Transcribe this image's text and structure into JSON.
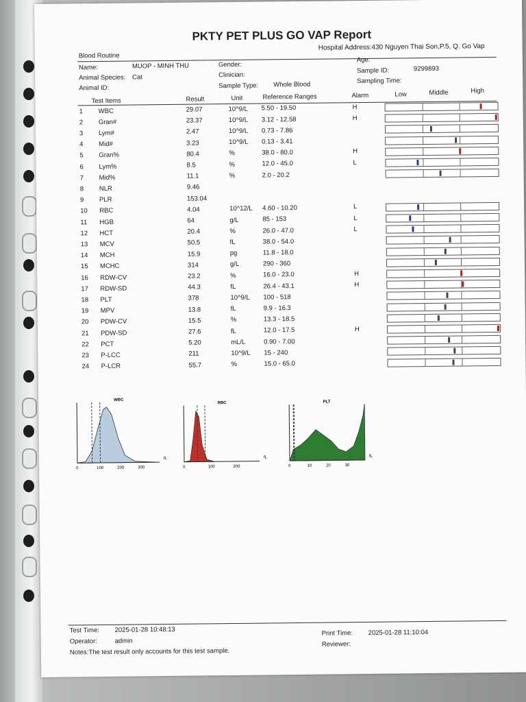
{
  "report": {
    "title": "PKTY PET PLUS GO VAP Report",
    "section": "Blood Routine",
    "hospital_address": "Hospital Address:430 Nguyen Thai Son,P.5, Q. Go Vap",
    "name_label": "Name:",
    "name_value": "MUOP - MINH THU",
    "species_label": "Animal Species:",
    "species_value": "Cat",
    "animal_id_label": "Animal ID:",
    "gender_label": "Gender:",
    "clinician_label": "Clinician:",
    "sample_type_label": "Sample Type:",
    "sample_type_value": "Whole Blood",
    "age_label": "Age:",
    "sample_id_label": "Sample ID:",
    "sample_id_value": "9299893",
    "sampling_time_label": "Sampling Time:"
  },
  "table": {
    "headers": {
      "item": "Test Items",
      "result": "Result",
      "unit": "Unit",
      "range": "Reference Ranges",
      "alarm": "Alarm",
      "low": "Low",
      "middle": "Middle",
      "high": "High"
    },
    "rows": [
      {
        "no": "1",
        "item": "WBC",
        "result": "29.07",
        "unit": "10^9/L",
        "range": "5.50 - 19.50",
        "alarm": "H",
        "level": 0.85,
        "color": "#b22222"
      },
      {
        "no": "2",
        "item": "Gran#",
        "result": "23.37",
        "unit": "10^9/L",
        "range": "3.12 - 12.58",
        "alarm": "H",
        "level": 0.98,
        "color": "#b22222"
      },
      {
        "no": "3",
        "item": "Lym#",
        "result": "2.47",
        "unit": "10^9/L",
        "range": "0.73 - 7.86",
        "alarm": "",
        "level": 0.4,
        "color": "#444444"
      },
      {
        "no": "4",
        "item": "Mid#",
        "result": "3.23",
        "unit": "10^9/L",
        "range": "0.13 - 3.41",
        "alarm": "",
        "level": 0.62,
        "color": "#444444"
      },
      {
        "no": "5",
        "item": "Gran%",
        "result": "80.4",
        "unit": "%",
        "range": "38.0 - 80.0",
        "alarm": "H",
        "level": 0.66,
        "color": "#b22222"
      },
      {
        "no": "6",
        "item": "Lym%",
        "result": "8.5",
        "unit": "%",
        "range": "12.0 - 45.0",
        "alarm": "L",
        "level": 0.28,
        "color": "#2a3a8a"
      },
      {
        "no": "7",
        "item": "Mid%",
        "result": "11.1",
        "unit": "%",
        "range": "2.0 - 20.2",
        "alarm": "",
        "level": 0.48,
        "color": "#444444"
      },
      {
        "no": "8",
        "item": "NLR",
        "result": "9.46",
        "unit": "",
        "range": "",
        "alarm": "",
        "level": null,
        "color": ""
      },
      {
        "no": "9",
        "item": "PLR",
        "result": "153.04",
        "unit": "",
        "range": "",
        "alarm": "",
        "level": null,
        "color": ""
      },
      {
        "no": "10",
        "item": "RBC",
        "result": "4.04",
        "unit": "10^12/L",
        "range": "4.60 - 10.20",
        "alarm": "L",
        "level": 0.28,
        "color": "#2a3a8a"
      },
      {
        "no": "11",
        "item": "HGB",
        "result": "64",
        "unit": "g/L",
        "range": "85 - 153",
        "alarm": "L",
        "level": 0.21,
        "color": "#2a3a8a"
      },
      {
        "no": "12",
        "item": "HCT",
        "result": "20.4",
        "unit": "%",
        "range": "26.0 - 47.0",
        "alarm": "L",
        "level": 0.23,
        "color": "#2a3a8a"
      },
      {
        "no": "13",
        "item": "MCV",
        "result": "50.5",
        "unit": "fL",
        "range": "38.0 - 54.0",
        "alarm": "",
        "level": 0.56,
        "color": "#444444"
      },
      {
        "no": "14",
        "item": "MCH",
        "result": "15.9",
        "unit": "pg",
        "range": "11.8 - 18.0",
        "alarm": "",
        "level": 0.52,
        "color": "#444444"
      },
      {
        "no": "15",
        "item": "MCHC",
        "result": "314",
        "unit": "g/L",
        "range": "290 - 360",
        "alarm": "",
        "level": 0.43,
        "color": "#444444"
      },
      {
        "no": "16",
        "item": "RDW-CV",
        "result": "23.2",
        "unit": "%",
        "range": "16.0 - 23.0",
        "alarm": "H",
        "level": 0.66,
        "color": "#b22222"
      },
      {
        "no": "17",
        "item": "RDW-SD",
        "result": "44.3",
        "unit": "fL",
        "range": "26.4 - 43.1",
        "alarm": "H",
        "level": 0.67,
        "color": "#b22222"
      },
      {
        "no": "18",
        "item": "PLT",
        "result": "378",
        "unit": "10^9/L",
        "range": "100 - 518",
        "alarm": "",
        "level": 0.53,
        "color": "#444444"
      },
      {
        "no": "19",
        "item": "MPV",
        "result": "13.8",
        "unit": "fL",
        "range": "9.9 - 16.3",
        "alarm": "",
        "level": 0.51,
        "color": "#444444"
      },
      {
        "no": "20",
        "item": "PDW-CV",
        "result": "15.5",
        "unit": "%",
        "range": "13.3 - 18.5",
        "alarm": "",
        "level": 0.45,
        "color": "#444444"
      },
      {
        "no": "21",
        "item": "PDW-SD",
        "result": "27.6",
        "unit": "fL",
        "range": "12.0 - 17.5",
        "alarm": "H",
        "level": 0.99,
        "color": "#b22222"
      },
      {
        "no": "22",
        "item": "PCT",
        "result": "5.20",
        "unit": "mL/L",
        "range": "0.90 - 7.00",
        "alarm": "",
        "level": 0.54,
        "color": "#444444"
      },
      {
        "no": "23",
        "item": "P-LCC",
        "result": "211",
        "unit": "10^9/L",
        "range": "15 - 240",
        "alarm": "",
        "level": 0.59,
        "color": "#444444"
      },
      {
        "no": "24",
        "item": "P-LCR",
        "result": "55.7",
        "unit": "%",
        "range": "15.0 - 65.0",
        "alarm": "",
        "level": 0.58,
        "color": "#444444"
      }
    ]
  },
  "histograms": [
    {
      "label": "WBC",
      "unit": "fL",
      "ticks": [
        "0",
        "100",
        "200",
        "300"
      ],
      "color": "#b8cde0"
    },
    {
      "label": "RBC",
      "unit": "fL",
      "ticks": [
        "0",
        "100",
        "200"
      ],
      "color": "#c0302a"
    },
    {
      "label": "PLT",
      "unit": "fL",
      "ticks": [
        "0",
        "10",
        "20",
        "30"
      ],
      "color": "#2e7d32"
    }
  ],
  "footer": {
    "test_time_label": "Test Time:",
    "test_time_value": "2025-01-28 10:48:13",
    "operator_label": "Operator:",
    "operator_value": "admin",
    "notes": "Notes:The test result only accounts for this test sample.",
    "print_time_label": "Print Time:",
    "print_time_value": "2025-01-28 11:10:04",
    "reviewer_label": "Reviewer:"
  }
}
